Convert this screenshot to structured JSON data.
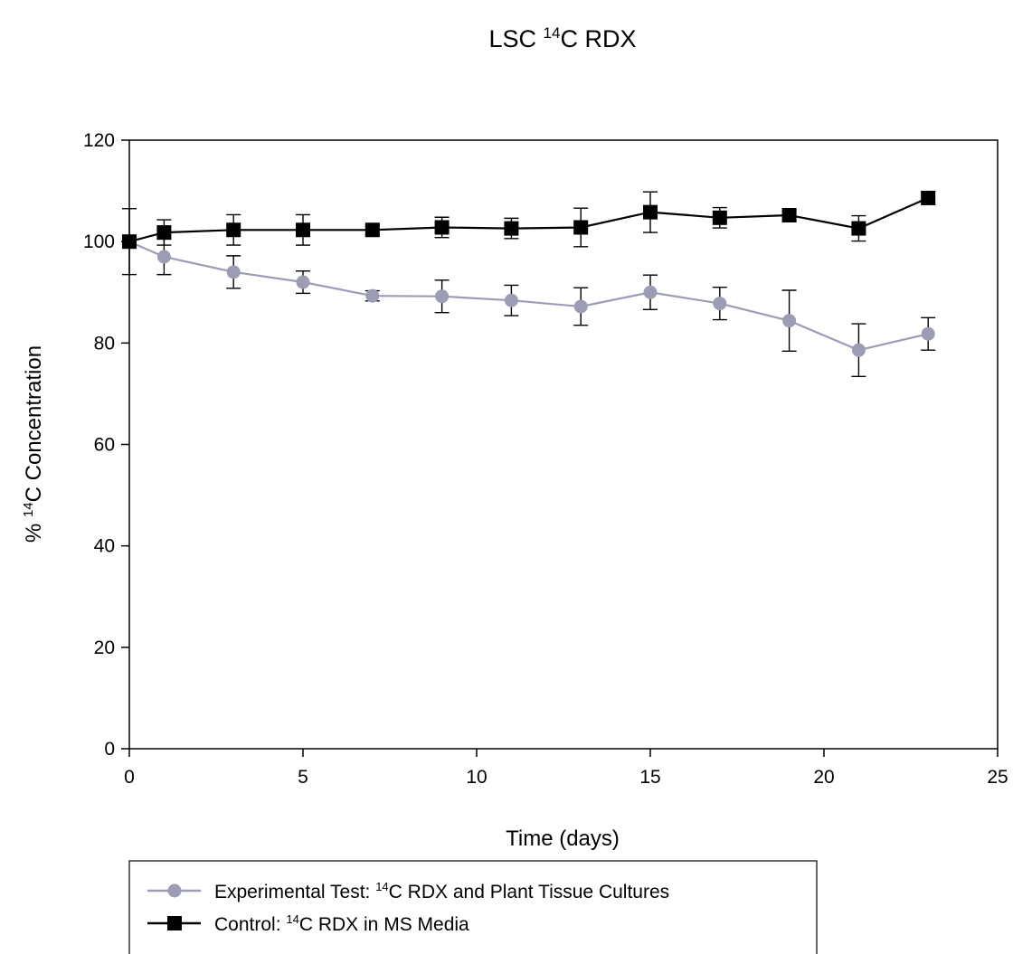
{
  "chart_data": {
    "type": "line",
    "title": {
      "before": "LSC ",
      "sup": "14",
      "after": "C RDX"
    },
    "xlabel": "Time (days)",
    "ylabel": {
      "before": "% ",
      "sup": "14",
      "after": "C Concentration"
    },
    "xlim": [
      0,
      25
    ],
    "ylim": [
      0,
      120
    ],
    "xticks": [
      0,
      5,
      10,
      15,
      20,
      25
    ],
    "yticks": [
      0,
      20,
      40,
      60,
      80,
      100,
      120
    ],
    "grid": false,
    "legend_position": "bottom",
    "series": [
      {
        "key": "experimental",
        "legend": {
          "before": "Experimental Test: ",
          "sup": "14",
          "after": "C RDX and Plant Tissue Cultures"
        },
        "color": "#9c9cb4",
        "marker": "circle",
        "x": [
          0,
          1,
          3,
          5,
          7,
          9,
          11,
          13,
          15,
          17,
          19,
          21,
          23
        ],
        "y": [
          100,
          97,
          94,
          92,
          89.3,
          89.2,
          88.4,
          87.2,
          90,
          87.8,
          84.4,
          78.6,
          81.8
        ],
        "err": [
          0,
          3.5,
          3.2,
          2.2,
          1,
          3.2,
          3,
          3.7,
          3.4,
          3.2,
          6,
          5.2,
          3.2
        ]
      },
      {
        "key": "control",
        "legend": {
          "before": "Control: ",
          "sup": "14",
          "after": "C RDX in MS Media"
        },
        "color": "#000000",
        "marker": "square",
        "x": [
          0,
          1,
          3,
          5,
          7,
          9,
          11,
          13,
          15,
          17,
          19,
          21,
          23
        ],
        "y": [
          100,
          101.8,
          102.3,
          102.3,
          102.3,
          102.8,
          102.6,
          102.8,
          105.8,
          104.7,
          105.2,
          102.6,
          108.6
        ],
        "err": [
          6.5,
          2.5,
          3,
          3,
          1,
          2,
          2,
          3.8,
          4,
          2,
          1,
          2.5,
          1.2
        ]
      }
    ]
  }
}
